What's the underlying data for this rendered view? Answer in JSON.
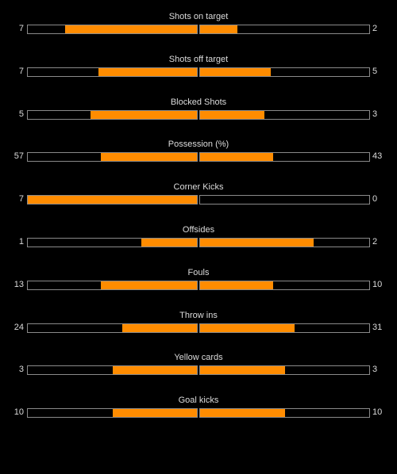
{
  "colors": {
    "background": "#000000",
    "bar_fill": "#ff8c00",
    "bar_border": "#8a8a8a",
    "text": "#dcdcdc"
  },
  "stats": [
    {
      "label": "Shots on target",
      "home": 7,
      "away": 2,
      "home_fill": 0.78,
      "away_fill": 0.22
    },
    {
      "label": "Shots off target",
      "home": 7,
      "away": 5,
      "home_fill": 0.58,
      "away_fill": 0.42
    },
    {
      "label": "Blocked Shots",
      "home": 5,
      "away": 3,
      "home_fill": 0.63,
      "away_fill": 0.38
    },
    {
      "label": "Possession (%)",
      "home": 57,
      "away": 43,
      "home_fill": 0.57,
      "away_fill": 0.43
    },
    {
      "label": "Corner Kicks",
      "home": 7,
      "away": 0,
      "home_fill": 1.0,
      "away_fill": 0.0
    },
    {
      "label": "Offsides",
      "home": 1,
      "away": 2,
      "home_fill": 0.33,
      "away_fill": 0.67
    },
    {
      "label": "Fouls",
      "home": 13,
      "away": 10,
      "home_fill": 0.57,
      "away_fill": 0.43
    },
    {
      "label": "Throw ins",
      "home": 24,
      "away": 31,
      "home_fill": 0.44,
      "away_fill": 0.56
    },
    {
      "label": "Yellow cards",
      "home": 3,
      "away": 3,
      "home_fill": 0.5,
      "away_fill": 0.5
    },
    {
      "label": "Goal kicks",
      "home": 10,
      "away": 10,
      "home_fill": 0.5,
      "away_fill": 0.5
    }
  ]
}
